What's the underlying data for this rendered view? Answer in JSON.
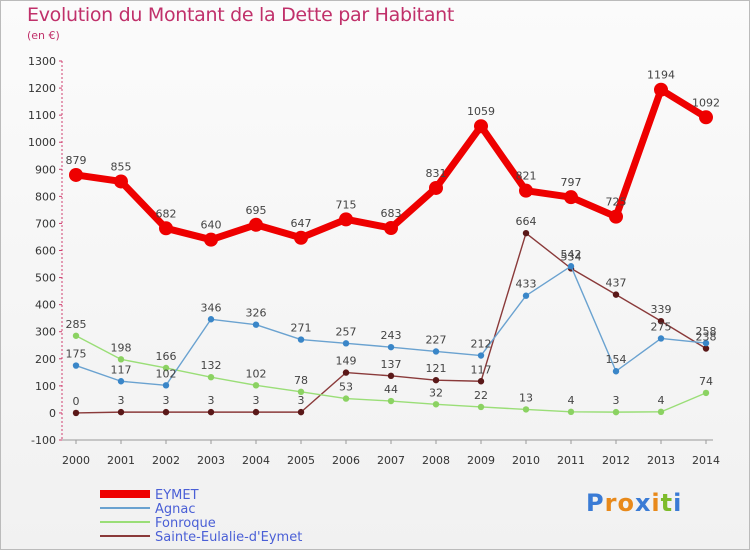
{
  "title": "Evolution du Montant de la Dette par Habitant",
  "unit": "(en €)",
  "logo": {
    "text": "Proxiti",
    "colors": [
      "#3a7bd5",
      "#e8891a",
      "#e8891a",
      "#3a7bd5",
      "#e8891a",
      "#7dbb2b",
      "#3a7bd5"
    ]
  },
  "chart_data": {
    "type": "line",
    "title": "Evolution du Montant de la Dette par Habitant",
    "ylabel": "(en €)",
    "xlabel": "",
    "ylim": [
      -100,
      1300
    ],
    "yticks": [
      -100,
      0,
      100,
      200,
      300,
      400,
      500,
      600,
      700,
      800,
      900,
      1000,
      1100,
      1200,
      1300
    ],
    "grid": false,
    "legend_position": "bottom-left",
    "x": [
      "2000",
      "2001",
      "2002",
      "2003",
      "2004",
      "2005",
      "2006",
      "2007",
      "2008",
      "2009",
      "2010",
      "2011",
      "2012",
      "2013",
      "2014"
    ],
    "series": [
      {
        "name": "EYMET",
        "color": "#ee0000",
        "width": 7,
        "marker": 7,
        "values": [
          879,
          855,
          682,
          640,
          695,
          647,
          715,
          683,
          831,
          1059,
          821,
          797,
          725,
          1194,
          1092
        ],
        "labels": [
          "879",
          "855",
          "682",
          "640",
          "695",
          "647",
          "715",
          "683",
          "831",
          "1059",
          "821",
          "797",
          "725",
          "1194",
          "1092"
        ]
      },
      {
        "name": "Agnac",
        "color": "#6aa2d0",
        "width": 1.4,
        "marker": 3.2,
        "markerColor": "#3a86c8",
        "values": [
          175,
          117,
          102,
          346,
          326,
          271,
          257,
          243,
          227,
          212,
          433,
          542,
          154,
          275,
          258
        ],
        "labels": [
          "175",
          "117",
          "102",
          "346",
          "326",
          "271",
          "257",
          "243",
          "227",
          "212",
          "433",
          "542",
          "154",
          "275",
          "258"
        ]
      },
      {
        "name": "Fonroque",
        "color": "#9ade77",
        "width": 1.4,
        "marker": 3.2,
        "markerColor": "#8bd262",
        "values": [
          285,
          198,
          166,
          132,
          102,
          78,
          53,
          44,
          32,
          22,
          13,
          4,
          3,
          4,
          74
        ],
        "labels": [
          "285",
          "198",
          "166",
          "132",
          "102",
          "78",
          "53",
          "44",
          "32",
          "22",
          "13",
          "4",
          "3",
          "4",
          "74"
        ]
      },
      {
        "name": "Sainte-Eulalie-d'Eymet",
        "color": "#8a3a3a",
        "width": 1.4,
        "marker": 3.2,
        "markerColor": "#5a1818",
        "values": [
          0,
          3,
          3,
          3,
          3,
          3,
          149,
          137,
          121,
          117,
          664,
          534,
          437,
          339,
          238
        ],
        "labels": [
          "0",
          "3",
          "3",
          "3",
          "3",
          "3",
          "149",
          "137",
          "121",
          "117",
          "664",
          "534",
          "437",
          "339",
          "238"
        ]
      }
    ]
  }
}
